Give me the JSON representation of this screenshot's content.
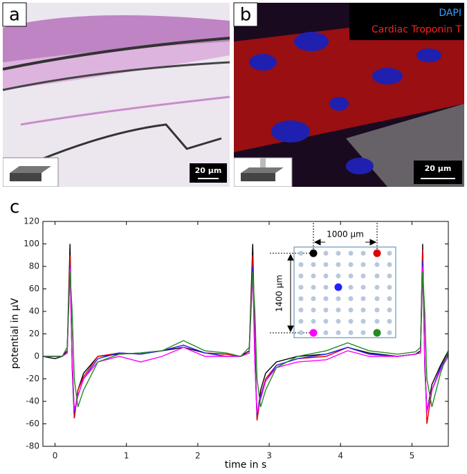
{
  "panels": {
    "a": {
      "label": "a",
      "scale_bar": "20 µm"
    },
    "b": {
      "label": "b",
      "scale_bar": "20 µm",
      "legend": [
        "DAPI",
        "Cardiac Troponin T"
      ]
    }
  },
  "chart_data": {
    "type": "line",
    "panel_label": "c",
    "x_label": "time in s",
    "y_label": "potential in µV",
    "inset": {
      "width_label": "1000 µm",
      "height_label": "1400 µm"
    },
    "x": [
      -0.17,
      0.0,
      0.1,
      0.17,
      0.21,
      0.24,
      0.27,
      0.32,
      0.4,
      0.6,
      0.9,
      1.2,
      1.5,
      1.8,
      2.1,
      2.4,
      2.6,
      2.72,
      2.77,
      2.8,
      2.83,
      2.88,
      2.95,
      3.1,
      3.4,
      3.8,
      4.1,
      4.4,
      4.8,
      5.05,
      5.12,
      5.15,
      5.18,
      5.21,
      5.28,
      5.4,
      5.51
    ],
    "series": [
      {
        "color": "#000000",
        "values": [
          0,
          -2,
          0,
          5,
          100,
          -10,
          -55,
          -30,
          -15,
          0,
          2,
          3,
          5,
          8,
          3,
          2,
          0,
          5,
          100,
          10,
          -55,
          -30,
          -15,
          -5,
          0,
          2,
          8,
          3,
          0,
          2,
          5,
          100,
          -10,
          -50,
          -25,
          -8,
          5
        ]
      },
      {
        "color": "#e00000",
        "values": [
          0,
          0,
          0,
          3,
          90,
          0,
          -55,
          -30,
          -18,
          0,
          3,
          2,
          5,
          10,
          3,
          2,
          0,
          3,
          90,
          0,
          -57,
          -35,
          -20,
          -8,
          -2,
          0,
          8,
          2,
          0,
          2,
          3,
          95,
          0,
          -60,
          -30,
          -10,
          3
        ]
      },
      {
        "color": "#2222ff",
        "values": [
          0,
          0,
          0,
          3,
          80,
          -5,
          -50,
          -35,
          -20,
          -2,
          3,
          2,
          5,
          10,
          3,
          0,
          0,
          3,
          80,
          -5,
          -52,
          -35,
          -22,
          -8,
          -2,
          2,
          8,
          2,
          0,
          2,
          3,
          85,
          -5,
          -48,
          -30,
          -10,
          2
        ]
      },
      {
        "color": "#ff00ff",
        "values": [
          0,
          0,
          0,
          3,
          78,
          -5,
          -48,
          -35,
          -20,
          -5,
          0,
          -5,
          0,
          8,
          0,
          0,
          0,
          3,
          75,
          -5,
          -50,
          -38,
          -22,
          -10,
          -5,
          -3,
          5,
          0,
          0,
          2,
          3,
          80,
          -5,
          -50,
          -30,
          -12,
          0
        ]
      },
      {
        "color": "#228b22",
        "values": [
          0,
          0,
          0,
          8,
          75,
          40,
          -20,
          -45,
          -30,
          -5,
          2,
          3,
          5,
          14,
          5,
          3,
          0,
          8,
          75,
          40,
          -20,
          -45,
          -30,
          -10,
          0,
          5,
          12,
          5,
          2,
          4,
          8,
          75,
          40,
          -20,
          -45,
          -15,
          5
        ]
      }
    ],
    "xlim": [
      -0.17,
      5.51
    ],
    "ylim": [
      -80,
      120
    ],
    "xticks": [
      0,
      1,
      2,
      3,
      4,
      5
    ],
    "yticks": [
      -80,
      -60,
      -40,
      -20,
      0,
      20,
      40,
      60,
      80,
      100,
      120
    ]
  }
}
